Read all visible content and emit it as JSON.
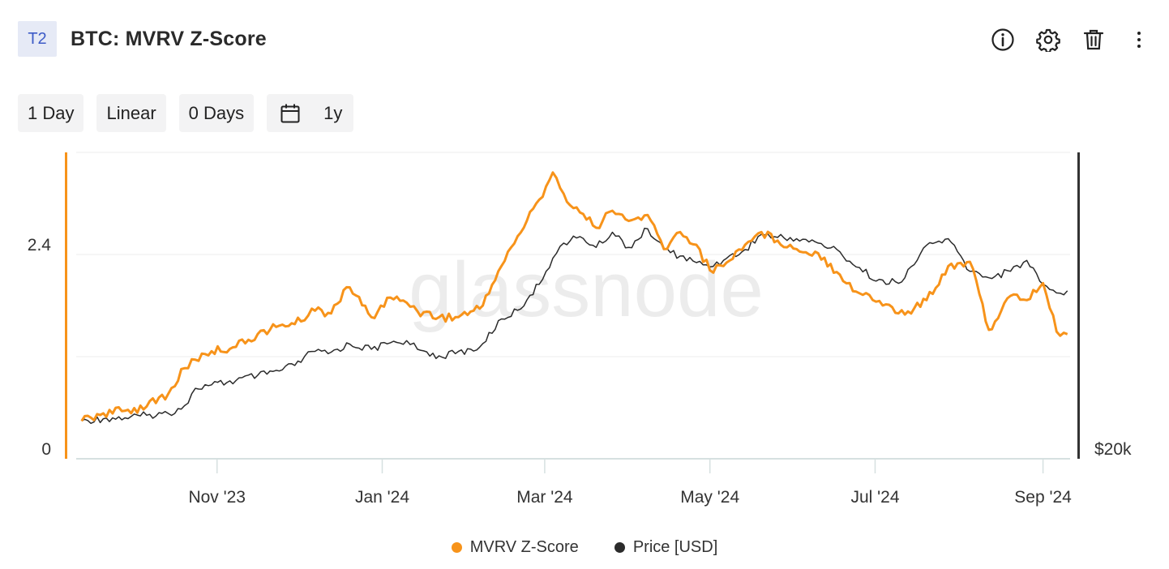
{
  "header": {
    "tag": "T2",
    "title": "BTC: MVRV Z-Score"
  },
  "controls": {
    "resolution": "1 Day",
    "scale": "Linear",
    "sma": "0 Days",
    "range": "1y"
  },
  "watermark": "glassnode",
  "colors": {
    "mvrv": "#f7931a",
    "price": "#2b2b2b",
    "grid": "#e6e6e6",
    "tag_bg": "#e6eaf6",
    "tag_text": "#3d5bc7"
  },
  "chart_data": {
    "type": "line",
    "x_ticks": [
      "Nov '23",
      "Jan '24",
      "Mar '24",
      "May '24",
      "Jul '24",
      "Sep '24"
    ],
    "y_left_ticks": [
      "2.4",
      "0"
    ],
    "y_right_ticks": [
      "$20k"
    ],
    "series": [
      {
        "name": "MVRV Z-Score",
        "axis": "left",
        "color": "#f7931a",
        "x": [
          "2023-09-12",
          "2023-09-20",
          "2023-09-28",
          "2023-10-06",
          "2023-10-14",
          "2023-10-20",
          "2023-10-24",
          "2023-10-30",
          "2023-11-08",
          "2023-11-16",
          "2023-11-24",
          "2023-12-02",
          "2023-12-06",
          "2023-12-12",
          "2023-12-20",
          "2023-12-28",
          "2024-01-04",
          "2024-01-10",
          "2024-01-14",
          "2024-01-22",
          "2024-01-28",
          "2024-02-06",
          "2024-02-14",
          "2024-02-20",
          "2024-02-28",
          "2024-03-04",
          "2024-03-08",
          "2024-03-14",
          "2024-03-20",
          "2024-03-26",
          "2024-04-01",
          "2024-04-08",
          "2024-04-14",
          "2024-04-20",
          "2024-04-26",
          "2024-05-01",
          "2024-05-06",
          "2024-05-14",
          "2024-05-20",
          "2024-05-26",
          "2024-06-02",
          "2024-06-10",
          "2024-06-18",
          "2024-06-24",
          "2024-07-05",
          "2024-07-12",
          "2024-07-20",
          "2024-07-28",
          "2024-08-05",
          "2024-08-12",
          "2024-08-20",
          "2024-08-26",
          "2024-09-01",
          "2024-09-06",
          "2024-09-10"
        ],
        "values": [
          0.33,
          0.42,
          0.45,
          0.5,
          0.65,
          0.95,
          1.05,
          1.15,
          1.2,
          1.35,
          1.45,
          1.5,
          1.65,
          1.6,
          1.9,
          1.55,
          1.78,
          1.72,
          1.62,
          1.55,
          1.55,
          1.65,
          2.15,
          2.5,
          2.93,
          3.25,
          3.0,
          2.78,
          2.6,
          2.8,
          2.68,
          2.75,
          2.35,
          2.55,
          2.4,
          2.1,
          2.15,
          2.4,
          2.55,
          2.45,
          2.35,
          2.3,
          2.05,
          1.85,
          1.7,
          1.58,
          1.75,
          2.15,
          2.2,
          1.4,
          1.8,
          1.75,
          1.95,
          1.38,
          1.35
        ]
      },
      {
        "name": "Price [USD]",
        "axis": "right",
        "color": "#2b2b2b",
        "x": [
          "2023-09-12",
          "2023-09-20",
          "2023-09-28",
          "2023-10-06",
          "2023-10-14",
          "2023-10-20",
          "2023-10-24",
          "2023-10-30",
          "2023-11-08",
          "2023-11-16",
          "2023-11-24",
          "2023-12-02",
          "2023-12-06",
          "2023-12-12",
          "2023-12-20",
          "2023-12-28",
          "2024-01-04",
          "2024-01-10",
          "2024-01-14",
          "2024-01-22",
          "2024-01-28",
          "2024-02-06",
          "2024-02-14",
          "2024-02-20",
          "2024-02-28",
          "2024-03-04",
          "2024-03-08",
          "2024-03-14",
          "2024-03-20",
          "2024-03-26",
          "2024-04-01",
          "2024-04-08",
          "2024-04-14",
          "2024-04-20",
          "2024-04-26",
          "2024-05-01",
          "2024-05-06",
          "2024-05-14",
          "2024-05-20",
          "2024-05-26",
          "2024-06-02",
          "2024-06-10",
          "2024-06-18",
          "2024-06-24",
          "2024-07-05",
          "2024-07-12",
          "2024-07-20",
          "2024-07-28",
          "2024-08-05",
          "2024-08-12",
          "2024-08-20",
          "2024-08-26",
          "2024-09-01",
          "2024-09-06",
          "2024-09-10"
        ],
        "values": [
          26500,
          27000,
          27200,
          27800,
          28200,
          30000,
          34000,
          34800,
          35800,
          37000,
          38000,
          40000,
          42500,
          42000,
          44200,
          43000,
          44500,
          45000,
          43000,
          41500,
          42000,
          43500,
          50000,
          52000,
          58000,
          64000,
          67500,
          69000,
          66500,
          70000,
          66500,
          70800,
          66000,
          64500,
          63000,
          62000,
          63500,
          66000,
          69500,
          68800,
          68500,
          67500,
          65500,
          62000,
          58000,
          59500,
          67000,
          68500,
          61000,
          59500,
          61000,
          63500,
          58000,
          56000,
          56500
        ]
      }
    ]
  },
  "legend": {
    "mvrv_label": "MVRV Z-Score",
    "price_label": "Price [USD]"
  }
}
